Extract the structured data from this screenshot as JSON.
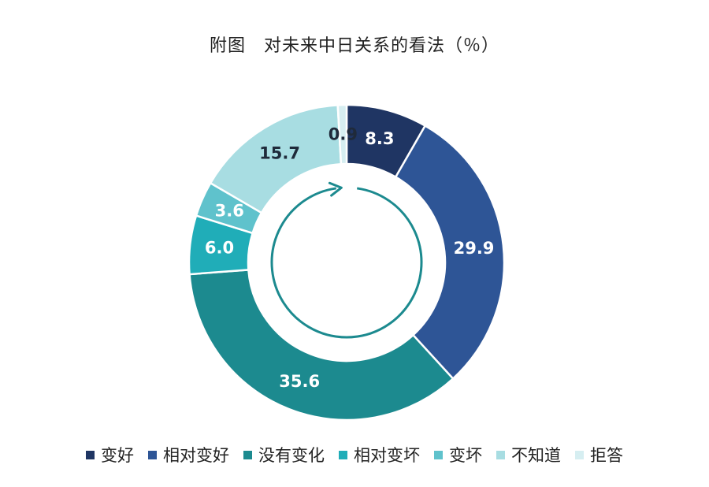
{
  "chart_data": {
    "type": "pie",
    "subtype": "donut",
    "title": "附图　对未来中日关系的看法（％）",
    "legend_position": "bottom",
    "start_angle_deg": 0,
    "direction": "clockwise",
    "series": [
      {
        "values": [
          {
            "label": "变好",
            "value": 8.3,
            "color": "#1f3563"
          },
          {
            "label": "相对变好",
            "value": 29.9,
            "color": "#2e5596"
          },
          {
            "label": "没有变化",
            "value": 35.6,
            "color": "#1c8a8f"
          },
          {
            "label": "相对变坏",
            "value": 6.0,
            "color": "#20adb8"
          },
          {
            "label": "变坏",
            "value": 3.6,
            "color": "#5fc2cc"
          },
          {
            "label": "不知道",
            "value": 15.7,
            "color": "#a8dde2"
          },
          {
            "label": "拒答",
            "value": 0.9,
            "color": "#d6eef1"
          }
        ]
      }
    ],
    "data_labels": [
      "8.3",
      "29.9",
      "35.6",
      "6.0",
      "3.6",
      "15.7",
      "0.9"
    ],
    "label_colors": [
      "#ffffff",
      "#ffffff",
      "#ffffff",
      "#ffffff",
      "#ffffff",
      "#1f2a3a",
      "#1f2a3a"
    ],
    "arrow_color": "#1c8a8f"
  }
}
